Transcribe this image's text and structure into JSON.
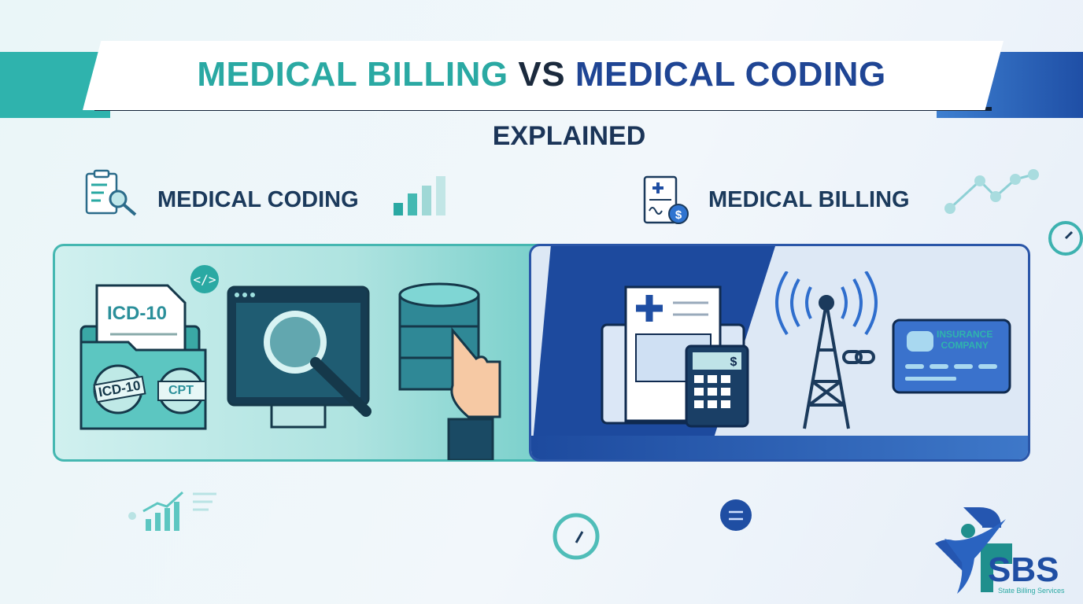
{
  "title": {
    "part1": "MEDICAL BILLING",
    "part2": "VS",
    "part3": "MEDICAL CODING",
    "subtitle": "EXPLAINED"
  },
  "colors": {
    "teal": "#2aa9a3",
    "navy": "#1b3a5c",
    "blue": "#1f4594"
  },
  "coding": {
    "heading": "MEDICAL CODING",
    "icon": "clipboard-search-icon",
    "doc_label": "ICD-10",
    "stamp1": "ICD-10",
    "stamp2": "CPT"
  },
  "billing": {
    "heading": "MEDICAL BILLING",
    "icon": "medical-bill-dollar-icon",
    "calc_symbol": "$",
    "card_text1": "INSURANCE",
    "card_text2": "COMPANY"
  },
  "logo": {
    "name": "SBS",
    "tagline": "State Billing Services"
  }
}
